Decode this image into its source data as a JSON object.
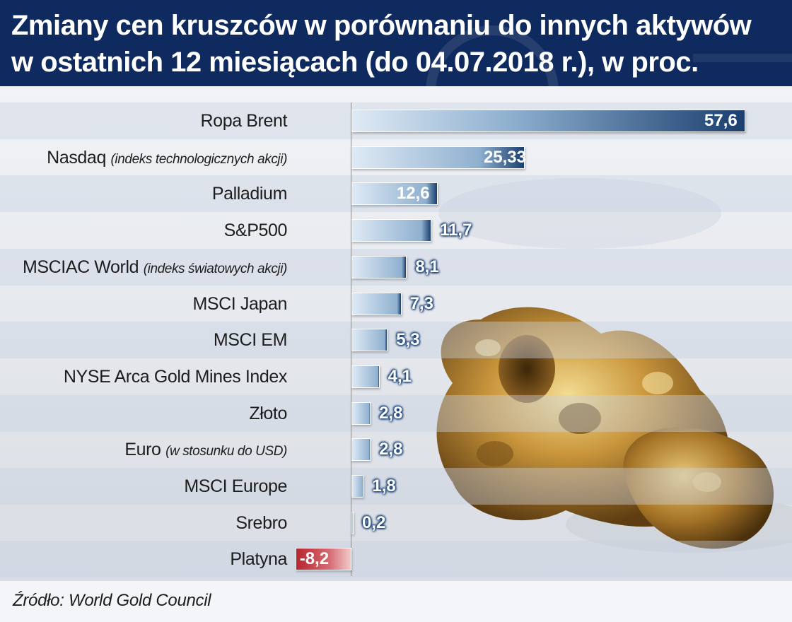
{
  "title": {
    "line1": "Zmiany cen kruszców w porównaniu do innych aktywów",
    "line2": "w ostatnich 12 miesiącach (do 04.07.2018 r.), w proc."
  },
  "source": "Źródło: World Gold Council",
  "colors": {
    "header": "#0f2a5e",
    "bar_dark": "#1b3f6e",
    "bar_light": "#dfeaf5",
    "negative": "#b8262f"
  },
  "chart_data": {
    "type": "bar",
    "orientation": "horizontal",
    "title": "Zmiany cen kruszców w porównaniu do innych aktywów w ostatnich 12 miesiącach (do 04.07.2018 r.), w proc.",
    "categories": [
      {
        "name": "Ropa Brent",
        "note": ""
      },
      {
        "name": "Nasdaq",
        "note": "(indeks technologicznych akcji)"
      },
      {
        "name": "Palladium",
        "note": ""
      },
      {
        "name": "S&P500",
        "note": ""
      },
      {
        "name": "MSCIAC World",
        "note": "(indeks światowych akcji)"
      },
      {
        "name": "MSCI Japan",
        "note": ""
      },
      {
        "name": "MSCI EM",
        "note": ""
      },
      {
        "name": "NYSE Arca Gold Mines Index",
        "note": ""
      },
      {
        "name": "Złoto",
        "note": ""
      },
      {
        "name": "Euro",
        "note": "(w stosunku do USD)"
      },
      {
        "name": "MSCI Europe",
        "note": ""
      },
      {
        "name": "Srebro",
        "note": ""
      },
      {
        "name": "Platyna",
        "note": ""
      }
    ],
    "values": [
      57.6,
      25.33,
      12.6,
      11.7,
      8.1,
      7.3,
      5.3,
      4.1,
      2.8,
      2.8,
      1.8,
      0.2,
      -8.2
    ],
    "value_labels": [
      "57,6",
      "25,33",
      "12,6",
      "11,7",
      "8,1",
      "7,3",
      "5,3",
      "4,1",
      "2,8",
      "2,8",
      "1,8",
      "0,2",
      "-8,2"
    ],
    "xlabel": "",
    "ylabel": "",
    "xlim": [
      -8.2,
      57.6
    ],
    "grid": false,
    "legend": "none"
  }
}
